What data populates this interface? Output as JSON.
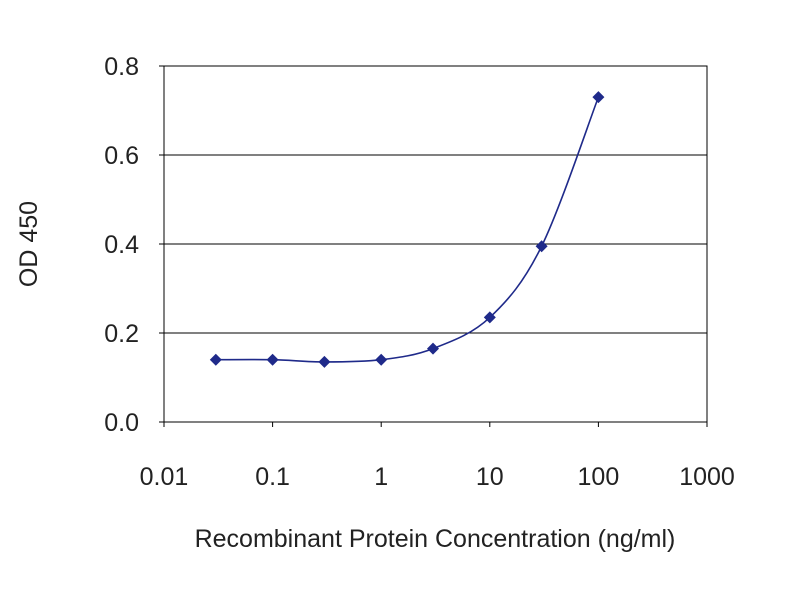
{
  "chart_data": {
    "type": "line",
    "xlabel": "Recombinant Protein Concentration (ng/ml)",
    "ylabel": "OD 450",
    "xscale": "log",
    "xlim": [
      0.01,
      1000
    ],
    "ylim": [
      0.0,
      0.8
    ],
    "x_ticks": [
      "0.01",
      "0.1",
      "1",
      "10",
      "100",
      "1000"
    ],
    "y_ticks": [
      "0.0",
      "0.2",
      "0.4",
      "0.6",
      "0.8"
    ],
    "grid": "horizontal",
    "legend": "none",
    "series": [
      {
        "x": [
          0.03,
          0.1,
          0.3,
          1,
          3,
          10,
          30,
          100
        ],
        "y": [
          0.14,
          0.14,
          0.135,
          0.14,
          0.165,
          0.235,
          0.395,
          0.73
        ]
      }
    ],
    "colors": {
      "series": "#1f2a8a",
      "grid": "#000000",
      "frame": "#000000"
    }
  }
}
